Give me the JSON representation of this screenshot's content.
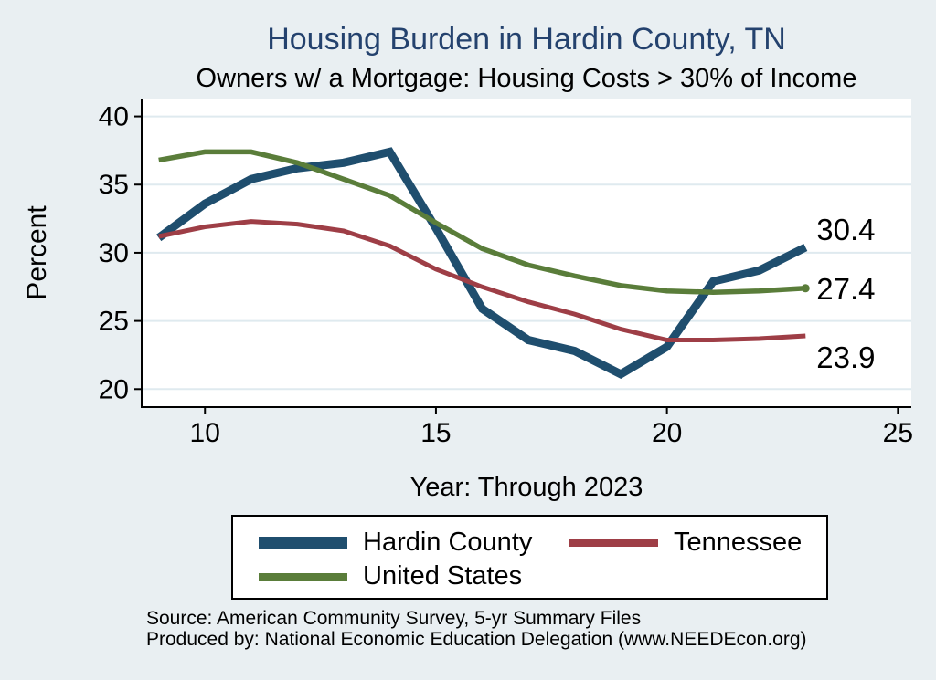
{
  "header": {
    "title": "Housing Burden in Hardin County, TN",
    "subtitle": "Owners w/ a Mortgage: Housing Costs > 30% of Income"
  },
  "colors": {
    "background": "#e9eff2",
    "plot_background": "#ffffff",
    "gridline": "#dfeaef",
    "axis": "#000000",
    "title": "#24426e",
    "hardin_county": "#1f4e6e",
    "tennessee": "#9e3e46",
    "united_states": "#5a7d3a"
  },
  "chart_data": {
    "type": "line",
    "title": "Housing Burden in Hardin County, TN",
    "subtitle": "Owners w/ a Mortgage: Housing Costs > 30% of Income",
    "xlabel": "Year: Through 2023",
    "ylabel": "Percent",
    "x": [
      9,
      10,
      11,
      12,
      13,
      14,
      15,
      16,
      17,
      18,
      19,
      20,
      21,
      22,
      23
    ],
    "x_ticks": [
      10,
      15,
      20,
      25
    ],
    "y_ticks": [
      20,
      25,
      30,
      35,
      40
    ],
    "xlim": [
      8.63,
      25.29
    ],
    "ylim": [
      18.68,
      41.31
    ],
    "grid": true,
    "legend_position": "bottom",
    "series": [
      {
        "name": "Hardin County",
        "color": "#1f4e6e",
        "line_width": 9,
        "values": [
          31.1,
          33.6,
          35.4,
          36.2,
          36.6,
          37.4,
          31.8,
          25.9,
          23.6,
          22.8,
          21.1,
          23.1,
          27.9,
          28.7,
          30.4
        ],
        "end_label": "30.4",
        "end_label_dy": -8,
        "end_marker": false
      },
      {
        "name": "Tennessee",
        "color": "#9e3e46",
        "line_width": 5,
        "values": [
          31.2,
          31.9,
          32.3,
          32.1,
          31.6,
          30.5,
          28.8,
          27.5,
          26.4,
          25.5,
          24.4,
          23.6,
          23.6,
          23.7,
          23.9
        ],
        "end_label": "23.9",
        "end_label_dy": 35,
        "end_marker": false
      },
      {
        "name": "United States",
        "color": "#5a7d3a",
        "line_width": 5.5,
        "values": [
          36.8,
          37.4,
          37.4,
          36.6,
          35.4,
          34.2,
          32.2,
          30.3,
          29.1,
          28.3,
          27.6,
          27.2,
          27.1,
          27.2,
          27.4
        ],
        "end_label": "27.4",
        "end_label_dy": 12,
        "end_marker": true
      }
    ]
  },
  "footer": {
    "source": "Source: American Community Survey, 5-yr Summary Files",
    "produced_by": "Produced by: National Economic Education Delegation (www.NEEDEcon.org)"
  }
}
